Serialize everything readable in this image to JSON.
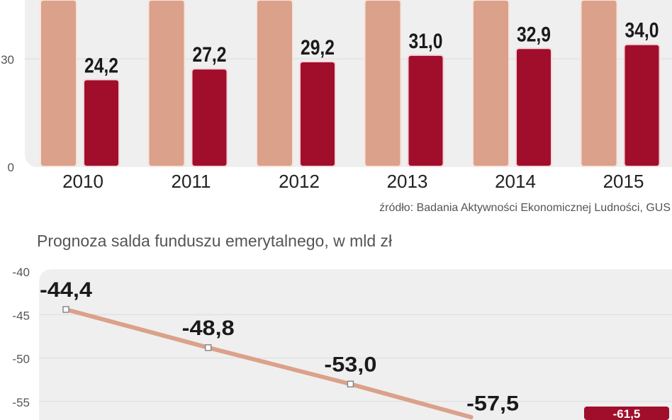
{
  "chart_data": [
    {
      "type": "bar",
      "categories": [
        "2010",
        "2011",
        "2012",
        "2013",
        "2014",
        "2015"
      ],
      "series": [
        {
          "values": [
            null,
            null,
            null,
            null,
            null,
            null
          ],
          "color": "#dba18a"
        },
        {
          "values": [
            24.2,
            27.2,
            29.2,
            31.0,
            32.9,
            34.0
          ],
          "labels": [
            "24,2",
            "27,2",
            "29,2",
            "31,0",
            "32,9",
            "34,0"
          ],
          "color": "#a10e2b"
        }
      ],
      "y_ticks": [
        "0",
        "30"
      ],
      "ylim_visible": [
        0,
        46
      ],
      "grid": true,
      "source": "źródło: Badania Aktywności Ekonomicznej Ludności, GUS"
    },
    {
      "type": "line",
      "title": "Prognoza salda funduszu emerytalnego, w mld zł",
      "values": [
        -44.4,
        -48.8,
        -53.0,
        -57.5,
        -61.5
      ],
      "labels": [
        "-44,4",
        "-48,8",
        "-53,0",
        "-57,5",
        "-61,5"
      ],
      "y_ticks": [
        "-40",
        "-45",
        "-50",
        "-55"
      ],
      "ylim_visible": [
        -58.5,
        -40
      ],
      "grid": true,
      "line_color": "#dba18a",
      "highlight_color": "#a10e2b"
    }
  ]
}
